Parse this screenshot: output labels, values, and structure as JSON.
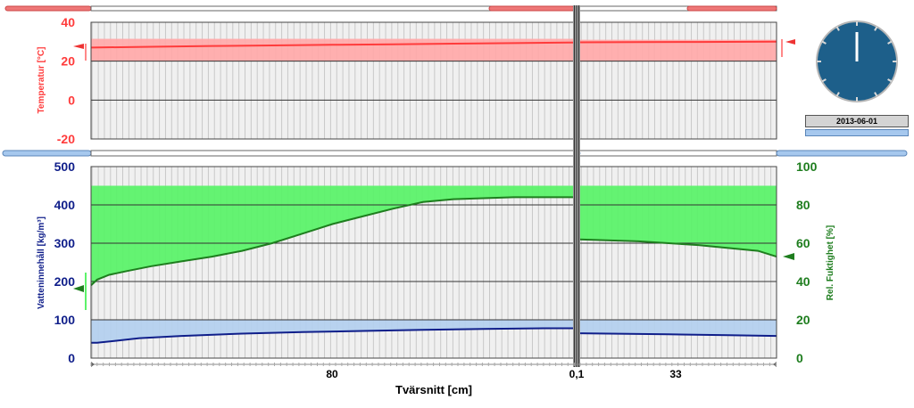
{
  "date_label": "2013-06-01",
  "x_axis_label": "Tvärsnitt [cm]",
  "layer_labels": [
    "80",
    "0,1",
    "33"
  ],
  "colors": {
    "temp": "#ff3b3b",
    "temp_fill": "#ffabab",
    "water": "#0f1e8a",
    "water_fill": "#b4d0ee",
    "rh": "#1e7d1e",
    "rh_fill": "#5cf26a",
    "grid_bg": "#f0f0f0",
    "clock": "#1d5f8a"
  },
  "chart_data": [
    {
      "type": "area",
      "name": "temperature-profile",
      "ylabel": "Temperatur [°C]",
      "ylim": [
        -20,
        40
      ],
      "yticks": [
        "40",
        "20",
        "0",
        "-20"
      ],
      "x": [
        0,
        10,
        20,
        30,
        40,
        50,
        60,
        70,
        80,
        80.1,
        90,
        100,
        113.1
      ],
      "y": [
        27,
        27.4,
        27.8,
        28.1,
        28.4,
        28.7,
        29,
        29.3,
        29.6,
        29.7,
        29.8,
        29.9,
        30
      ],
      "band_bottom": 20,
      "band_top_left": 31.5,
      "band_top_right": 31,
      "band_bottom_right": 20
    },
    {
      "type": "area",
      "name": "moisture-profile",
      "ylabel_left": "Vatteninnehåll [kg/m³]",
      "ylabel_right": "Rel. Fuktighet [%]",
      "ylim_left": [
        0,
        500
      ],
      "ylim_right": [
        0,
        100
      ],
      "yticks_left": [
        "500",
        "400",
        "300",
        "200",
        "100",
        "0"
      ],
      "yticks_right": [
        "100",
        "80",
        "60",
        "40",
        "20",
        "0"
      ],
      "series": [
        {
          "name": "Vatteninnehåll",
          "axis": "left",
          "x": [
            0,
            1,
            4,
            8,
            15,
            25,
            35,
            45,
            55,
            65,
            70,
            75,
            80,
            80.1,
            85,
            95,
            105,
            113.1
          ],
          "y": [
            40,
            40,
            45,
            52,
            58,
            64,
            68,
            71,
            74,
            76,
            77,
            78,
            78,
            65,
            64,
            62,
            60,
            58
          ]
        },
        {
          "name": "Rel. Fuktighet",
          "axis": "right",
          "x": [
            0,
            1,
            3,
            6,
            10,
            15,
            20,
            25,
            30,
            35,
            40,
            45,
            50,
            55,
            60,
            65,
            70,
            75,
            80,
            80.1,
            90,
            100,
            110,
            113.1
          ],
          "y": [
            38,
            41,
            43.5,
            45.5,
            48,
            50.5,
            53,
            56,
            60,
            65,
            70,
            74,
            78,
            81.5,
            83,
            83.5,
            84,
            84,
            84,
            62,
            61,
            59,
            56,
            53
          ]
        }
      ],
      "band_rh_top": 90,
      "band_water_top": 100
    }
  ]
}
